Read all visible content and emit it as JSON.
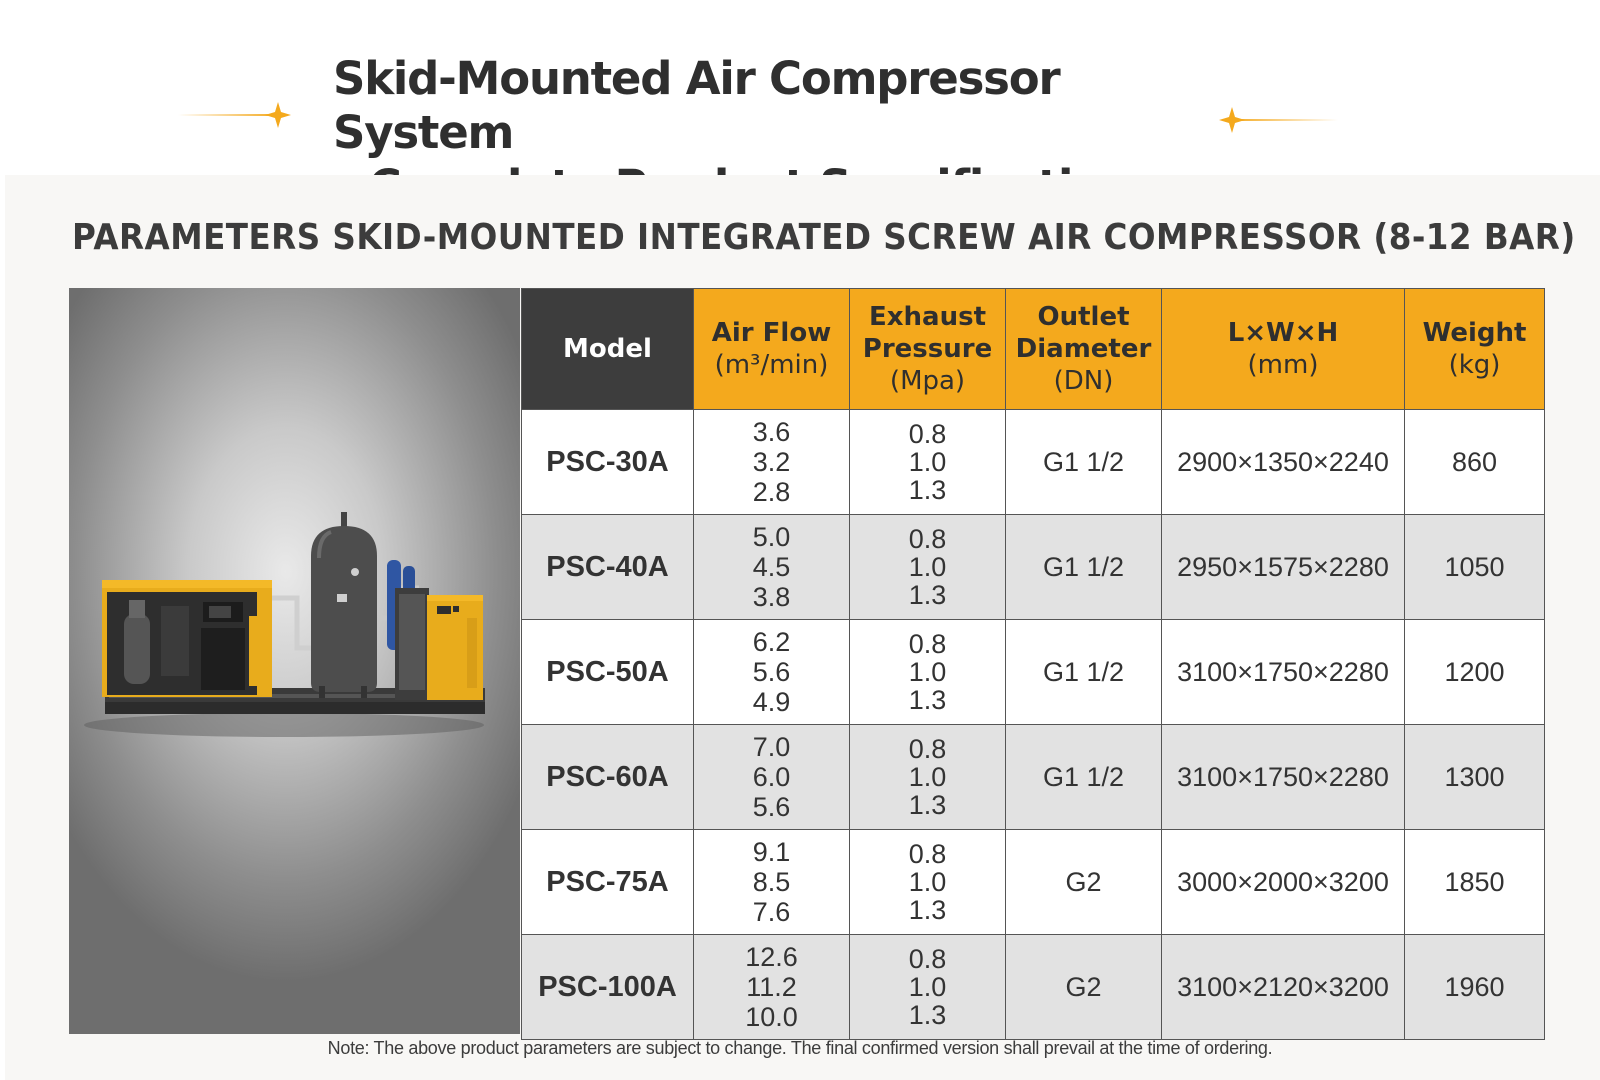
{
  "header": {
    "title_line1": "Skid-Mounted Air Compressor System",
    "title_line2": "– Complete Product Specification",
    "accent_color": "#f4a91d"
  },
  "section": {
    "heading": "PARAMETERS SKID-MOUNTED INTEGRATED  SCREW AIR COMPRESSOR (8-12 BAR)"
  },
  "photo": {
    "icon": "skid-mounted-compressor-system-image"
  },
  "table": {
    "headers": {
      "model": "Model",
      "air_flow": {
        "line": "Air Flow",
        "unit": "(m³/min)"
      },
      "exhaust_pressure": {
        "line1": "Exhaust",
        "line2": "Pressure",
        "unit": "(Mpa)"
      },
      "outlet_diameter": {
        "line1": "Outlet",
        "line2": "Diameter",
        "unit": "(DN)"
      },
      "dimensions": {
        "line": "L×W×H",
        "unit": "(mm)"
      },
      "weight": {
        "line": "Weight",
        "unit": "(kg)"
      }
    },
    "rows": [
      {
        "model": "PSC-30A",
        "air_flow": [
          "3.6",
          "3.2",
          "2.8"
        ],
        "pressure": [
          "0.8",
          "1.0",
          "1.3"
        ],
        "outlet": "G1 1/2",
        "dimensions": "2900×1350×2240",
        "weight": "860"
      },
      {
        "model": "PSC-40A",
        "air_flow": [
          "5.0",
          "4.5",
          "3.8"
        ],
        "pressure": [
          "0.8",
          "1.0",
          "1.3"
        ],
        "outlet": "G1 1/2",
        "dimensions": "2950×1575×2280",
        "weight": "1050"
      },
      {
        "model": "PSC-50A",
        "air_flow": [
          "6.2",
          "5.6",
          "4.9"
        ],
        "pressure": [
          "0.8",
          "1.0",
          "1.3"
        ],
        "outlet": "G1 1/2",
        "dimensions": "3100×1750×2280",
        "weight": "1200"
      },
      {
        "model": "PSC-60A",
        "air_flow": [
          "7.0",
          "6.0",
          "5.6"
        ],
        "pressure": [
          "0.8",
          "1.0",
          "1.3"
        ],
        "outlet": "G1 1/2",
        "dimensions": "3100×1750×2280",
        "weight": "1300"
      },
      {
        "model": "PSC-75A",
        "air_flow": [
          "9.1",
          "8.5",
          "7.6"
        ],
        "pressure": [
          "0.8",
          "1.0",
          "1.3"
        ],
        "outlet": "G2",
        "dimensions": "3000×2000×3200",
        "weight": "1850"
      },
      {
        "model": "PSC-100A",
        "air_flow": [
          "12.6",
          "11.2",
          "10.0"
        ],
        "pressure": [
          "0.8",
          "1.0",
          "1.3"
        ],
        "outlet": "G2",
        "dimensions": "3100×2120×3200",
        "weight": "1960"
      }
    ]
  },
  "footer": {
    "note": "Note: The above product parameters are subject to change. The final confirmed version shall prevail at the time of ordering."
  }
}
